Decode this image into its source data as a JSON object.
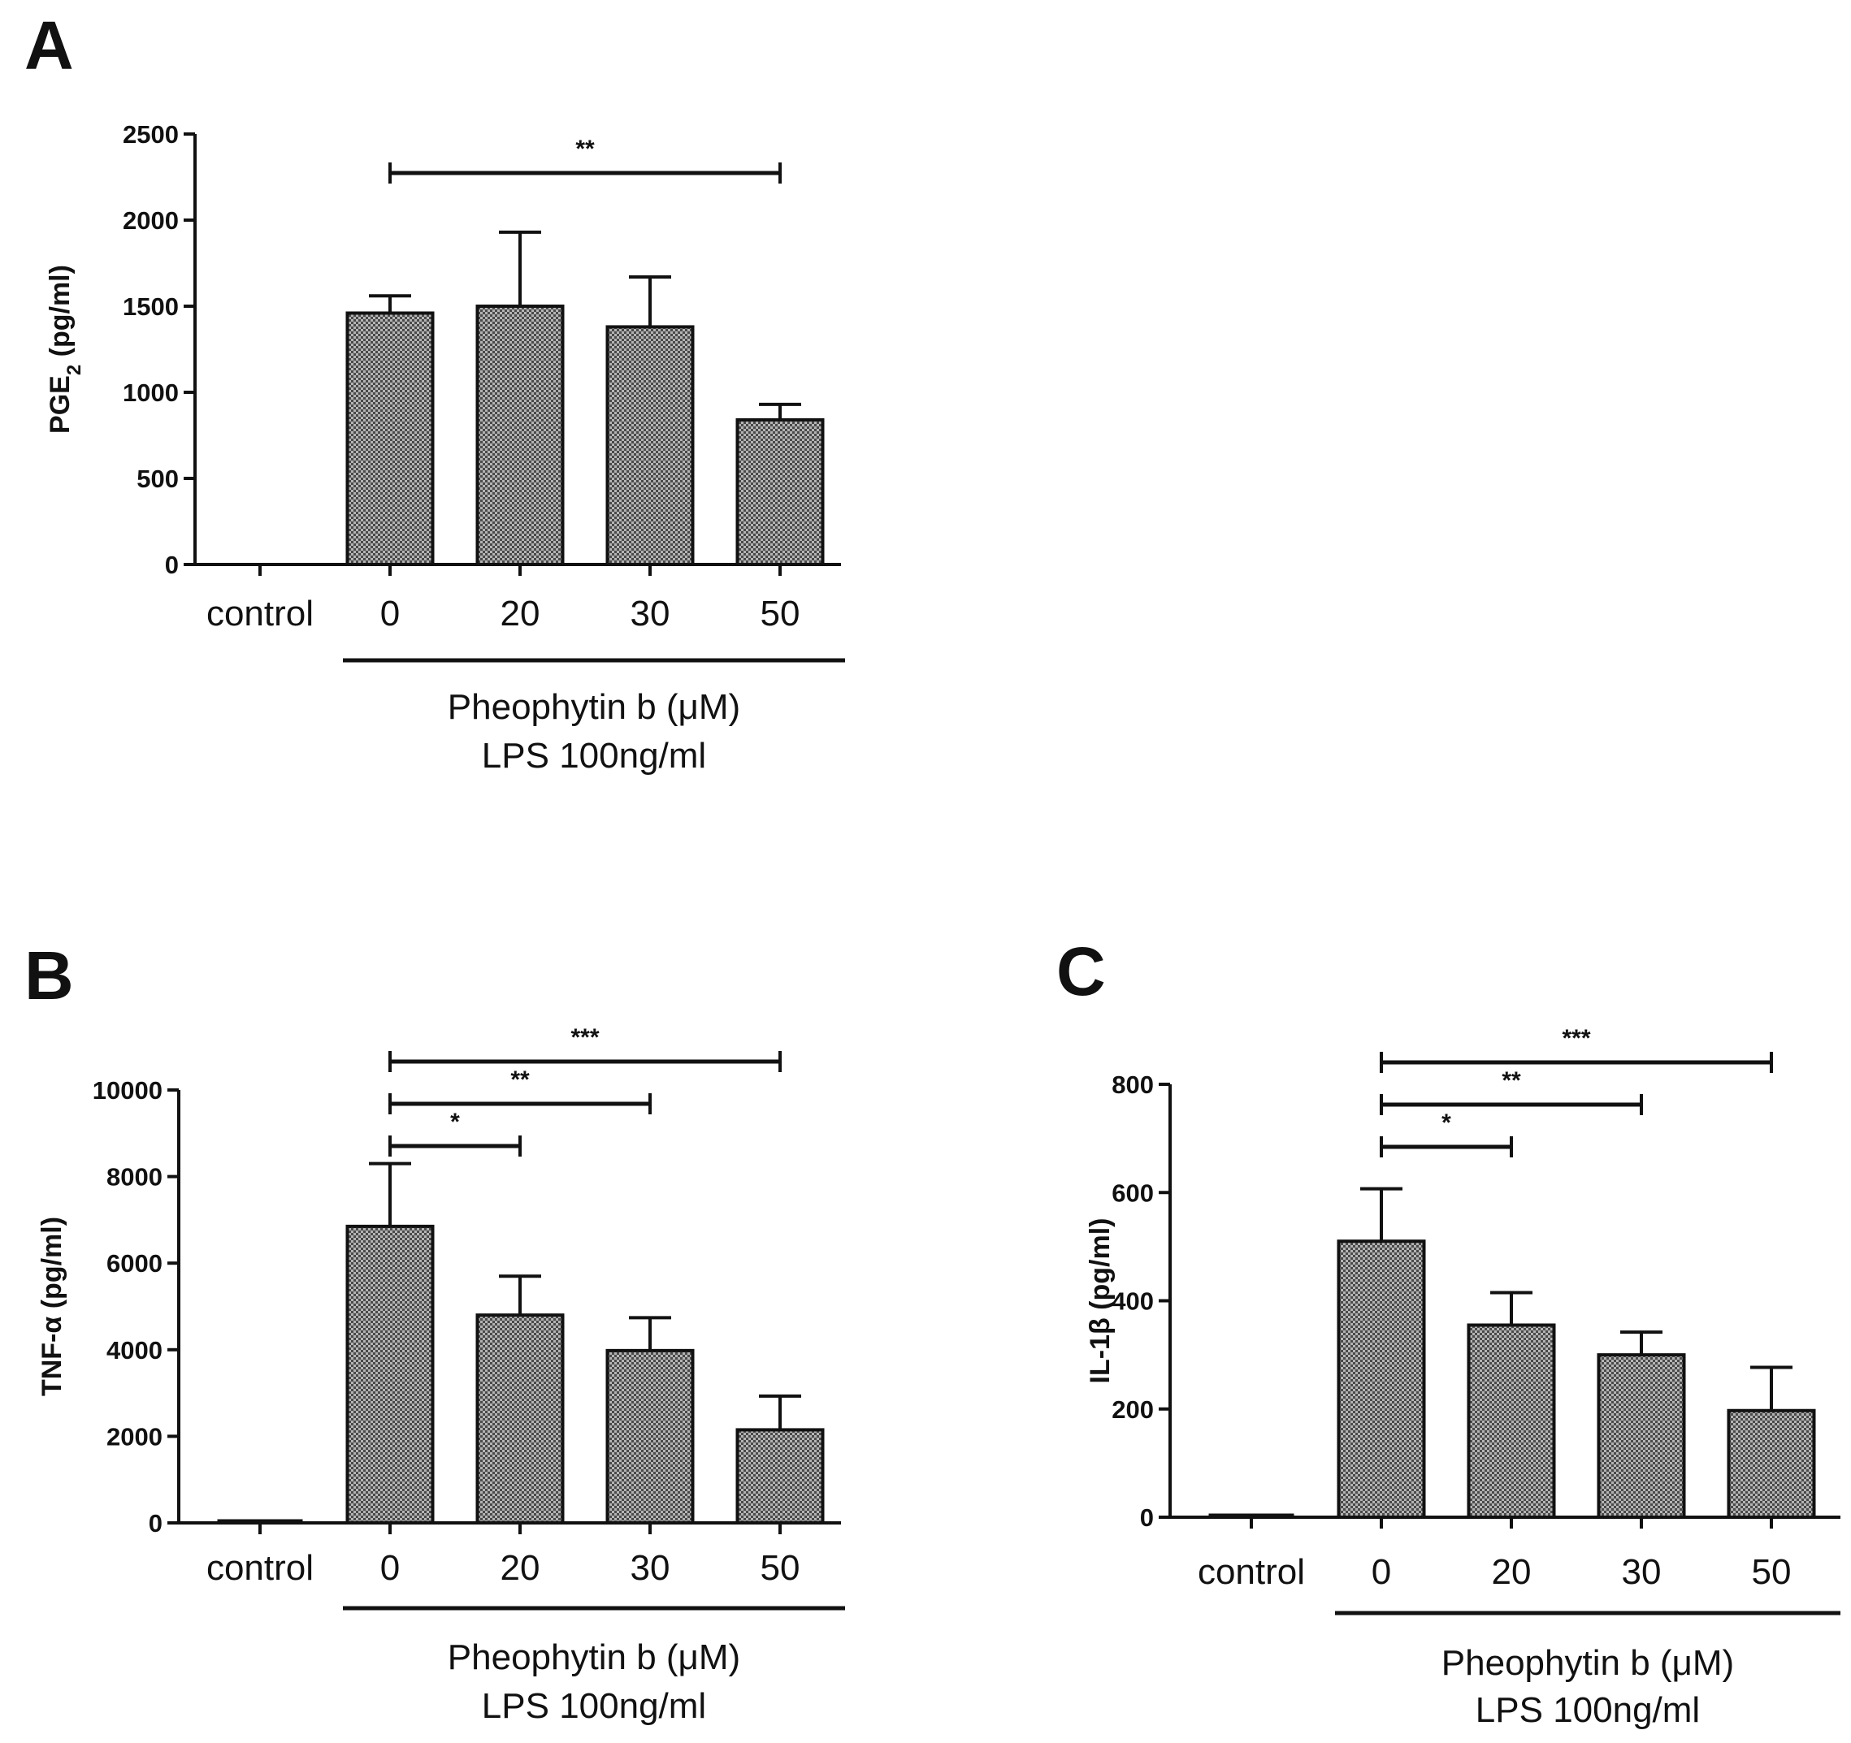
{
  "chart_data": [
    {
      "panel": "A",
      "type": "bar",
      "categories": [
        "control",
        "0",
        "20",
        "30",
        "50"
      ],
      "values": [
        0,
        1460,
        1500,
        1380,
        840
      ],
      "errors": [
        0,
        100,
        430,
        290,
        90
      ],
      "ylabel": "PGE2 (pg/ml)",
      "ylabel_main": "PGE",
      "ylabel_sub": "2",
      "ylabel_unit": " (pg/ml)",
      "ylim": [
        0,
        2500
      ],
      "yticks": [
        0,
        500,
        1000,
        1500,
        2000,
        2500
      ],
      "group_label_1": "Pheophytin b (μM)",
      "group_label_2": "LPS 100ng/ml",
      "significance": [
        {
          "from": "0",
          "to": "50",
          "label": "**"
        }
      ]
    },
    {
      "panel": "B",
      "type": "bar",
      "categories": [
        "control",
        "0",
        "20",
        "30",
        "50"
      ],
      "values": [
        50,
        6850,
        4800,
        3980,
        2150
      ],
      "errors": [
        0,
        1450,
        900,
        760,
        780
      ],
      "ylabel": "TNF-α (pg/ml)",
      "ylim": [
        0,
        10000
      ],
      "yticks": [
        0,
        2000,
        4000,
        6000,
        8000,
        10000
      ],
      "group_label_1": "Pheophytin b (μM)",
      "group_label_2": "LPS 100ng/ml",
      "significance": [
        {
          "from": "0",
          "to": "50",
          "label": "***"
        },
        {
          "from": "0",
          "to": "30",
          "label": "**"
        },
        {
          "from": "0",
          "to": "20",
          "label": "*"
        }
      ]
    },
    {
      "panel": "C",
      "type": "bar",
      "categories": [
        "control",
        "0",
        "20",
        "30",
        "50"
      ],
      "values": [
        2,
        510,
        355,
        300,
        197
      ],
      "errors": [
        0,
        97,
        60,
        42,
        80
      ],
      "ylabel": "IL-1β (pg/ml)",
      "ylim": [
        0,
        800
      ],
      "yticks": [
        0,
        200,
        400,
        600,
        800
      ],
      "group_label_1": "Pheophytin b (μM)",
      "group_label_2": "LPS 100ng/ml",
      "significance": [
        {
          "from": "0",
          "to": "50",
          "label": "***"
        },
        {
          "from": "0",
          "to": "30",
          "label": "**"
        },
        {
          "from": "0",
          "to": "20",
          "label": "*"
        }
      ]
    }
  ],
  "colors": {
    "bar_fill": "#9a9a9a",
    "bar_stroke": "#111111",
    "axis": "#111111",
    "text": "#111111"
  }
}
